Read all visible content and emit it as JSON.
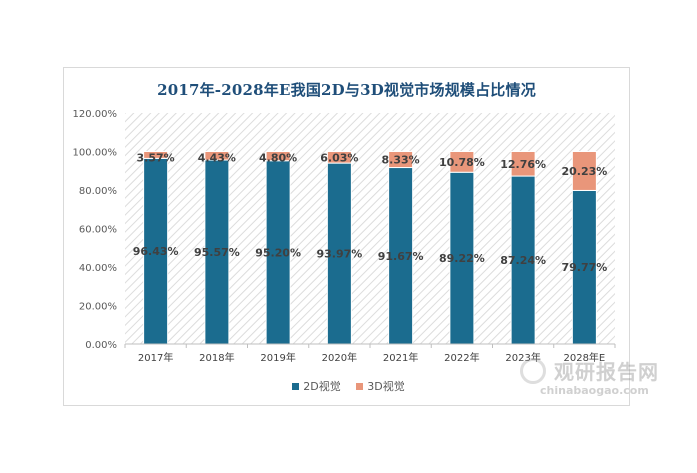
{
  "chart_data": {
    "type": "bar",
    "stacked": true,
    "title": "2017年-2028年E我国2D与3D视觉市场规模占比情况",
    "categories": [
      "2017年",
      "2018年",
      "2019年",
      "2020年",
      "2021年",
      "2022年",
      "2023年",
      "2028年E"
    ],
    "series": [
      {
        "name": "2D视觉",
        "color": "#1b6c8f",
        "values": [
          96.43,
          95.57,
          95.2,
          93.97,
          91.67,
          89.22,
          87.24,
          79.77
        ],
        "labels": [
          "96.43%",
          "95.57%",
          "95.20%",
          "93.97%",
          "91.67%",
          "89.22%",
          "87.24%",
          "79.77%"
        ]
      },
      {
        "name": "3D视觉",
        "color": "#e9967a",
        "values": [
          3.57,
          4.43,
          4.8,
          6.03,
          8.33,
          10.78,
          12.76,
          20.23
        ],
        "labels": [
          "3.57%",
          "4.43%",
          "4.80%",
          "6.03%",
          "8.33%",
          "10.78%",
          "12.76%",
          "20.23%"
        ]
      }
    ],
    "ylim": [
      0,
      120
    ],
    "yticks": [
      "0.00%",
      "20.00%",
      "40.00%",
      "60.00%",
      "80.00%",
      "100.00%",
      "120.00%"
    ],
    "ytick_values": [
      0,
      20,
      40,
      60,
      80,
      100,
      120
    ],
    "legend_position": "bottom",
    "grid": false
  },
  "watermark": {
    "name": "观研报告网",
    "url": "chinabaogao.com"
  }
}
